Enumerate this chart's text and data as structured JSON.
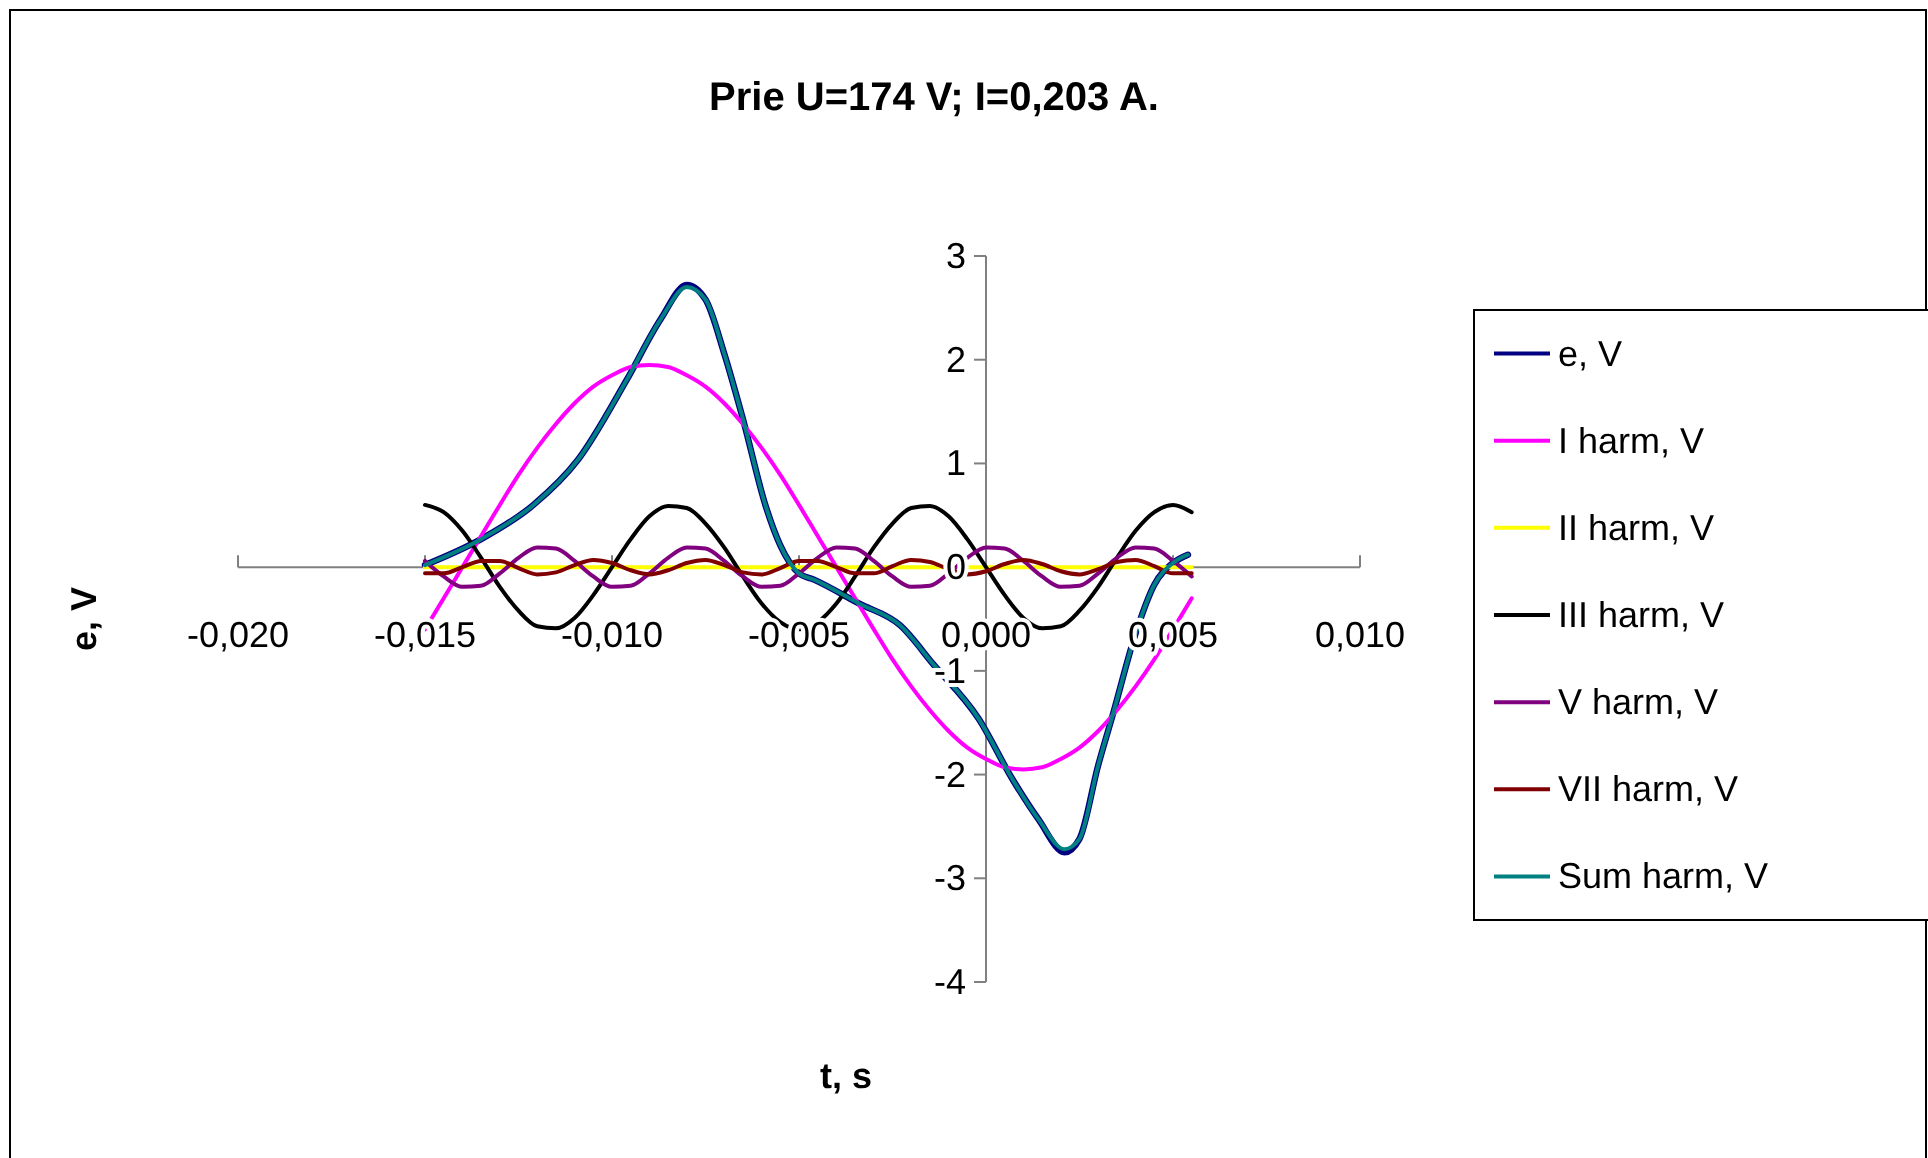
{
  "chart_data": {
    "type": "line",
    "title": "Prie U=174 V; I=0,203 A.",
    "xlabel": "t, s",
    "ylabel": "e, V",
    "xlim": [
      -0.02,
      0.01
    ],
    "xticks": [
      {
        "value": -0.02,
        "label": "-0,020"
      },
      {
        "value": -0.015,
        "label": "-0,015"
      },
      {
        "value": -0.01,
        "label": "-0,010"
      },
      {
        "value": -0.005,
        "label": "-0,005"
      },
      {
        "value": 0,
        "label": "0,000"
      },
      {
        "value": 0.005,
        "label": "0,005"
      },
      {
        "value": 0.01,
        "label": "0,010"
      }
    ],
    "ylim": [
      -4,
      3
    ],
    "yticks": [
      -4,
      -3,
      -2,
      -1,
      0,
      1,
      2,
      3
    ],
    "legend": "right",
    "x": [
      -0.015,
      -0.0145,
      -0.014,
      -0.0135,
      -0.013,
      -0.0125,
      -0.012,
      -0.0115,
      -0.011,
      -0.0105,
      -0.01,
      -0.0095,
      -0.009,
      -0.0085,
      -0.008,
      -0.0075,
      -0.007,
      -0.0065,
      -0.006,
      -0.0055,
      -0.005,
      -0.0045,
      -0.004,
      -0.0035,
      -0.003,
      -0.0025,
      -0.002,
      -0.0015,
      -0.001,
      -0.0005,
      0,
      0.0005,
      0.001,
      0.0015,
      0.002,
      0.0025,
      0.003,
      0.0035,
      0.004,
      0.0045,
      0.005,
      0.0055
    ],
    "series": [
      {
        "name": "e,  V",
        "color": "#000080",
        "x": [
          -0.015,
          -0.0135,
          -0.0121,
          -0.0109,
          -0.0096,
          -0.0087,
          -0.008,
          -0.0075,
          -0.007,
          -0.0065,
          -0.0059,
          -0.0055,
          -0.005,
          -0.0046,
          -0.0034,
          -0.0023,
          -0.0014,
          -0.0002,
          0.0007,
          0.0014,
          0.0021,
          0.0025,
          0.003,
          0.0034,
          0.004,
          0.0045,
          0.005,
          0.0054
        ],
        "values": [
          0.02,
          0.27,
          0.6,
          1.04,
          1.81,
          2.39,
          2.72,
          2.58,
          2.06,
          1.43,
          0.6,
          0.21,
          -0.06,
          -0.12,
          -0.35,
          -0.56,
          -0.94,
          -1.46,
          -2.04,
          -2.43,
          -2.75,
          -2.62,
          -1.91,
          -1.41,
          -0.64,
          -0.17,
          0.04,
          0.12
        ]
      },
      {
        "name": "I harm, V",
        "color": "#ff00ff",
        "values": [
          -0.6,
          -0.3,
          0,
          0.3,
          0.6,
          0.89,
          1.15,
          1.38,
          1.58,
          1.74,
          1.85,
          1.93,
          1.95,
          1.93,
          1.85,
          1.74,
          1.58,
          1.38,
          1.15,
          0.89,
          0.6,
          0.3,
          0,
          -0.3,
          -0.6,
          -0.89,
          -1.15,
          -1.38,
          -1.58,
          -1.74,
          -1.85,
          -1.93,
          -1.95,
          -1.93,
          -1.85,
          -1.74,
          -1.58,
          -1.38,
          -1.15,
          -0.89,
          -0.6,
          -0.3
        ]
      },
      {
        "name": "II harm, V",
        "color": "#ffff00",
        "values": [
          0,
          0,
          0,
          0,
          0,
          0,
          0,
          0,
          0,
          0,
          0,
          0,
          0,
          0,
          0,
          0,
          0,
          0,
          0,
          0,
          0,
          0,
          0,
          0,
          0,
          0,
          0,
          0,
          0,
          0,
          0,
          0,
          0,
          0,
          0,
          0,
          0,
          0,
          0,
          0,
          0,
          0
        ]
      },
      {
        "name": "III harm, V",
        "color": "#000000",
        "values": [
          0.6,
          0.53,
          0.35,
          0.09,
          -0.19,
          -0.42,
          -0.57,
          -0.59,
          -0.49,
          -0.27,
          0,
          0.27,
          0.49,
          0.59,
          0.57,
          0.42,
          0.19,
          -0.09,
          -0.35,
          -0.53,
          -0.6,
          -0.53,
          -0.35,
          -0.09,
          0.19,
          0.42,
          0.57,
          0.59,
          0.49,
          0.27,
          0,
          -0.27,
          -0.49,
          -0.59,
          -0.57,
          -0.42,
          -0.19,
          0.09,
          0.35,
          0.53,
          0.6,
          0.53
        ]
      },
      {
        "name": "V harm, V",
        "color": "#800080",
        "values": [
          0.06,
          -0.09,
          -0.19,
          -0.18,
          -0.06,
          0.09,
          0.19,
          0.18,
          0.06,
          -0.09,
          -0.19,
          -0.18,
          -0.06,
          0.09,
          0.19,
          0.18,
          0.06,
          -0.09,
          -0.19,
          -0.18,
          -0.06,
          0.09,
          0.19,
          0.18,
          0.06,
          -0.09,
          -0.19,
          -0.18,
          -0.06,
          0.09,
          0.19,
          0.18,
          0.06,
          -0.09,
          -0.19,
          -0.18,
          -0.06,
          0.09,
          0.19,
          0.18,
          0.06,
          -0.09
        ]
      },
      {
        "name": "VII harm, V",
        "color": "#800000",
        "values": [
          -0.06,
          -0.06,
          0,
          0.06,
          0.06,
          -0.01,
          -0.07,
          -0.05,
          0.02,
          0.07,
          0.04,
          -0.03,
          -0.07,
          -0.03,
          0.04,
          0.07,
          0.02,
          -0.05,
          -0.07,
          -0.01,
          0.06,
          0.06,
          0,
          -0.06,
          -0.06,
          0.01,
          0.07,
          0.05,
          -0.02,
          -0.07,
          -0.04,
          0.03,
          0.07,
          0.03,
          -0.04,
          -0.07,
          -0.02,
          0.05,
          0.07,
          0.01,
          -0.06,
          -0.06
        ]
      },
      {
        "name": "Sum harm, V",
        "color": "#008080",
        "x": [
          -0.015,
          -0.0135,
          -0.0121,
          -0.0109,
          -0.0096,
          -0.0087,
          -0.008,
          -0.0075,
          -0.007,
          -0.0065,
          -0.0059,
          -0.0055,
          -0.005,
          -0.0046,
          -0.0034,
          -0.0023,
          -0.0014,
          -0.0002,
          0.0007,
          0.0014,
          0.0021,
          0.0025,
          0.003,
          0.0034,
          0.004,
          0.0045,
          0.005,
          0.0054
        ],
        "values": [
          0.02,
          0.27,
          0.6,
          1.04,
          1.81,
          2.39,
          2.7,
          2.58,
          2.06,
          1.43,
          0.6,
          0.21,
          -0.06,
          -0.12,
          -0.35,
          -0.56,
          -0.94,
          -1.46,
          -2.04,
          -2.43,
          -2.72,
          -2.62,
          -1.91,
          -1.41,
          -0.64,
          -0.17,
          0.04,
          0.12
        ]
      }
    ]
  }
}
